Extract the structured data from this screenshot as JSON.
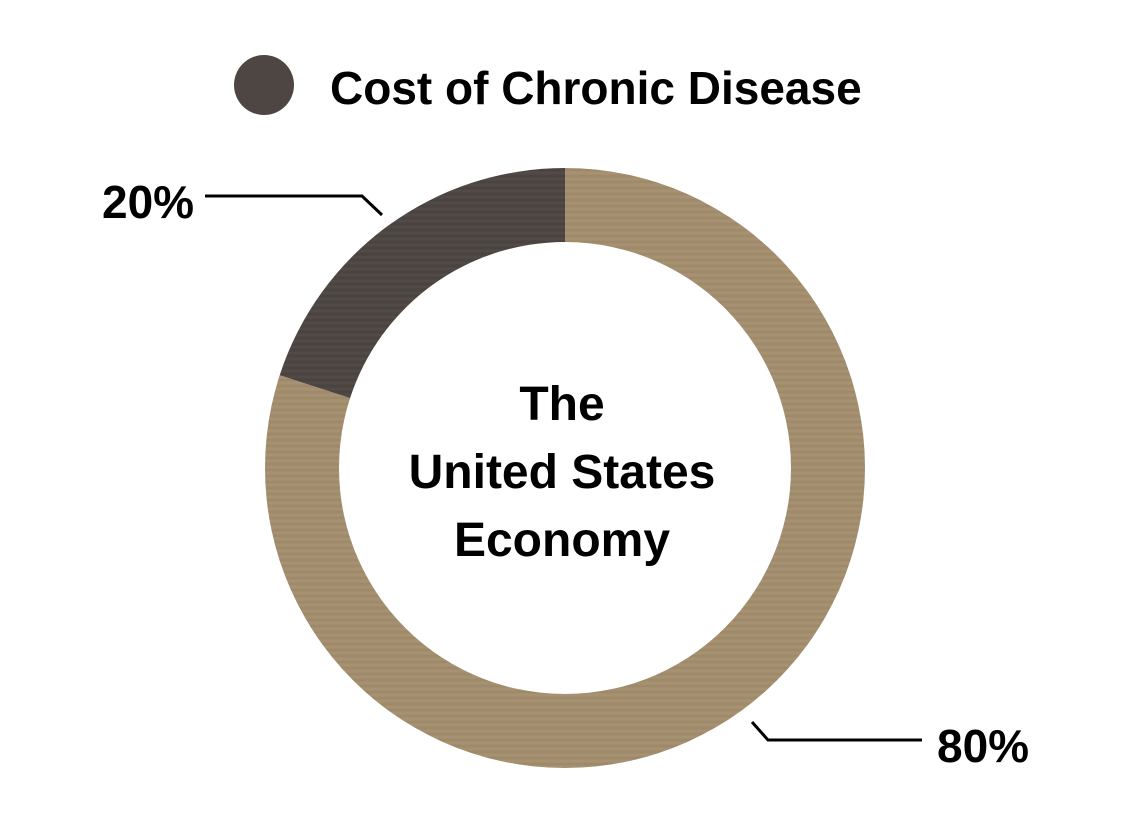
{
  "chart_data": {
    "type": "pie",
    "variant": "donut",
    "categories": [
      "Cost of Chronic Disease",
      ""
    ],
    "values": [
      20,
      80
    ],
    "labels": [
      "20%",
      "80%"
    ],
    "colors": [
      "#4d4642",
      "#a38e6e"
    ],
    "legend": {
      "entries": [
        "Cost of Chronic Disease"
      ],
      "position": "top"
    },
    "center_text": [
      "The",
      "United States",
      "Economy"
    ]
  }
}
